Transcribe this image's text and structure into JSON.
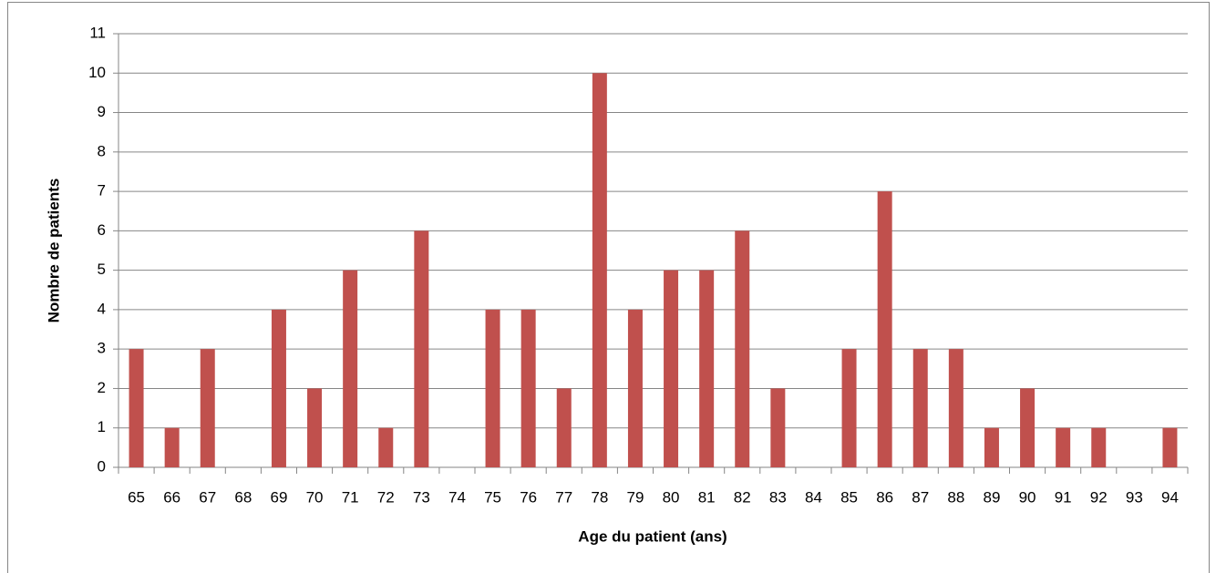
{
  "chart_data": {
    "type": "bar",
    "x_label": "Age du patient (ans)",
    "y_label": "Nombre de patients",
    "categories": [
      "65",
      "66",
      "67",
      "68",
      "69",
      "70",
      "71",
      "72",
      "73",
      "74",
      "75",
      "76",
      "77",
      "78",
      "79",
      "80",
      "81",
      "82",
      "83",
      "84",
      "85",
      "86",
      "87",
      "88",
      "89",
      "90",
      "91",
      "92",
      "93",
      "94"
    ],
    "values": [
      3,
      1,
      3,
      0,
      4,
      2,
      5,
      1,
      6,
      0,
      4,
      4,
      2,
      10,
      4,
      5,
      5,
      6,
      2,
      0,
      3,
      7,
      3,
      3,
      1,
      2,
      1,
      1,
      0,
      1
    ],
    "color": "#c0504d",
    "ylim": [
      0,
      11
    ],
    "yticks": [
      0,
      1,
      2,
      3,
      4,
      5,
      6,
      7,
      8,
      9,
      10,
      11
    ],
    "grid": true
  }
}
